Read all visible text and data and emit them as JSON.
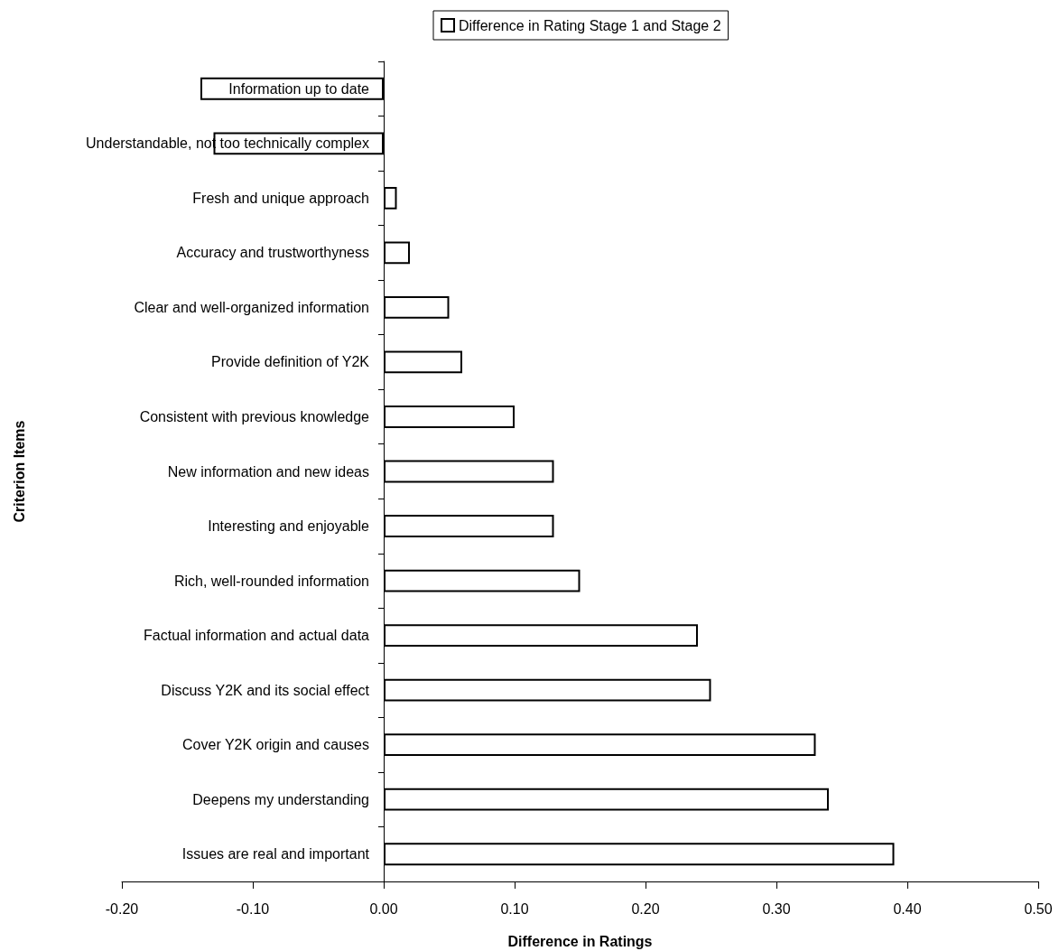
{
  "chart_data": {
    "type": "bar",
    "orientation": "horizontal",
    "xlabel": "Difference in Ratings",
    "ylabel": "Criterion Items",
    "categories": [
      "Information up to date",
      "Understandable, not too technically complex",
      "Fresh and unique approach",
      "Accuracy and trustworthyness",
      "Clear and well-organized information",
      "Provide definition of Y2K",
      "Consistent with previous knowledge",
      "New information and new ideas",
      "Interesting and enjoyable",
      "Rich, well-rounded information",
      "Factual information and actual data",
      "Discuss Y2K and its social effect",
      "Cover Y2K origin and causes",
      "Deepens my understanding",
      "Issues are real and important"
    ],
    "series": [
      {
        "name": "Difference in Rating Stage 1 and Stage 2",
        "color": "#ffffff",
        "values": [
          -0.14,
          -0.13,
          0.01,
          0.02,
          0.05,
          0.06,
          0.1,
          0.13,
          0.13,
          0.15,
          0.24,
          0.25,
          0.33,
          0.34,
          0.39
        ]
      }
    ],
    "xlim": [
      -0.2,
      0.5
    ],
    "xticks": [
      {
        "value": -0.2,
        "label": "-0.20"
      },
      {
        "value": -0.1,
        "label": "-0.10"
      },
      {
        "value": 0,
        "label": "0.00"
      },
      {
        "value": 0.1,
        "label": "0.10"
      },
      {
        "value": 0.2,
        "label": "0.20"
      },
      {
        "value": 0.3,
        "label": "0.30"
      },
      {
        "value": 0.4,
        "label": "0.40"
      },
      {
        "value": 0.5,
        "label": "0.50"
      }
    ],
    "grid": false,
    "legend": "top"
  }
}
